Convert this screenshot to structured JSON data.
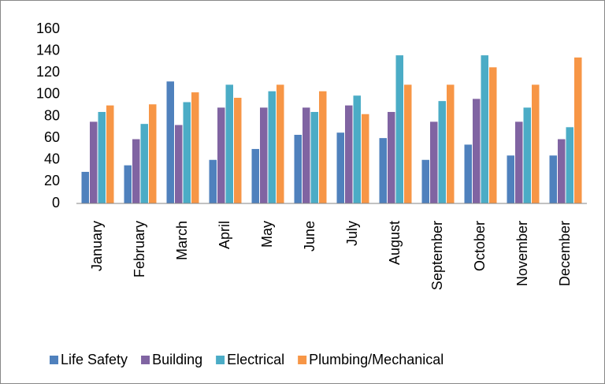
{
  "chart_data": {
    "type": "bar",
    "categories": [
      "January",
      "February",
      "March",
      "April",
      "May",
      "June",
      "July",
      "August",
      "September",
      "October",
      "November",
      "December"
    ],
    "series": [
      {
        "name": "Life Safety",
        "color": "#4f81bd",
        "values": [
          29,
          35,
          112,
          40,
          50,
          63,
          65,
          60,
          40,
          54,
          44,
          44
        ]
      },
      {
        "name": "Building",
        "color": "#8064a2",
        "values": [
          75,
          59,
          72,
          88,
          88,
          88,
          90,
          84,
          75,
          96,
          75,
          59
        ]
      },
      {
        "name": "Electrical",
        "color": "#4bacc6",
        "values": [
          84,
          73,
          93,
          109,
          103,
          84,
          99,
          136,
          94,
          136,
          88,
          70
        ]
      },
      {
        "name": "Plumbing/Mechanical",
        "color": "#f79646",
        "values": [
          90,
          91,
          102,
          97,
          109,
          103,
          82,
          109,
          109,
          125,
          109,
          134
        ]
      }
    ],
    "ylim": [
      0,
      160
    ],
    "yticks": [
      0,
      20,
      40,
      60,
      80,
      100,
      120,
      140,
      160
    ],
    "grid": false,
    "legend": "bottom"
  }
}
